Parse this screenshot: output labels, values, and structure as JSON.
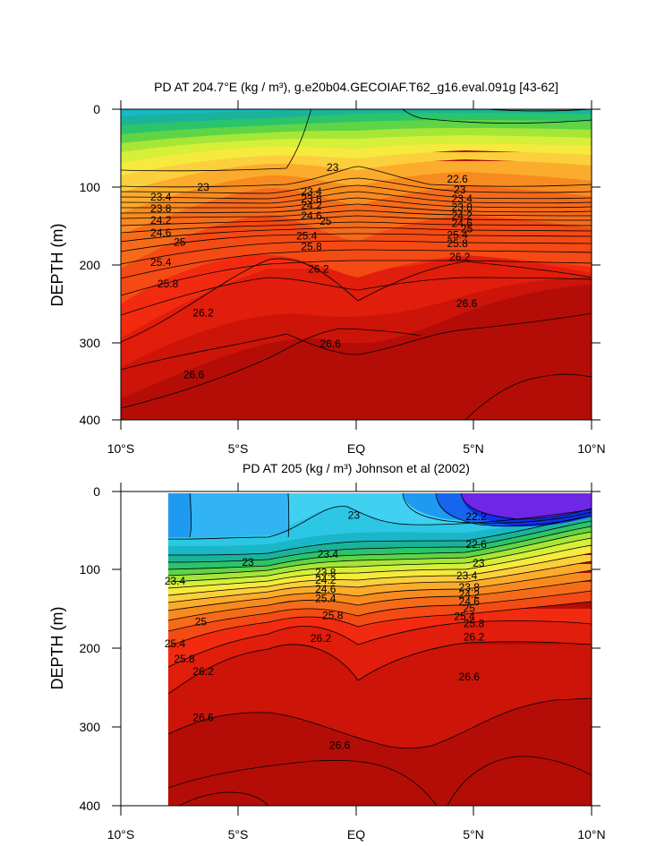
{
  "chart_data": [
    {
      "type": "contour",
      "title": "PD AT 204.7°E (kg / m³), g.e20b04.GECOIAF.T62_g16.eval.091g [43-62]",
      "ylabel": "DEPTH (m)",
      "xlabel": "",
      "x_ticks": [
        "10°S",
        "5°S",
        "EQ",
        "5°N",
        "10°N"
      ],
      "y_ticks": [
        "0",
        "100",
        "200",
        "300",
        "400"
      ],
      "xlim": [
        -10,
        10
      ],
      "ylim": [
        400,
        0
      ],
      "contour_interval": 0.2,
      "contour_labels": [
        {
          "text": "23",
          "x": -6.5,
          "y": 100
        },
        {
          "text": "23.4",
          "x": -8.3,
          "y": 113
        },
        {
          "text": "23.8",
          "x": -8.3,
          "y": 128
        },
        {
          "text": "24.2",
          "x": -8.3,
          "y": 143
        },
        {
          "text": "24.6",
          "x": -8.3,
          "y": 159
        },
        {
          "text": "25",
          "x": -7.5,
          "y": 171
        },
        {
          "text": "25.4",
          "x": -8.3,
          "y": 197
        },
        {
          "text": "25.8",
          "x": -8.0,
          "y": 225
        },
        {
          "text": "26.2",
          "x": -6.5,
          "y": 262
        },
        {
          "text": "26.6",
          "x": -6.9,
          "y": 342
        },
        {
          "text": "23",
          "x": -1.0,
          "y": 75
        },
        {
          "text": "23.4",
          "x": -1.9,
          "y": 106
        },
        {
          "text": "23.8",
          "x": -1.9,
          "y": 115
        },
        {
          "text": "24.2",
          "x": -1.9,
          "y": 124
        },
        {
          "text": "24.6",
          "x": -1.9,
          "y": 137
        },
        {
          "text": "25",
          "x": -1.3,
          "y": 144
        },
        {
          "text": "25.4",
          "x": -2.1,
          "y": 163
        },
        {
          "text": "25.8",
          "x": -1.9,
          "y": 177
        },
        {
          "text": "26.2",
          "x": -1.6,
          "y": 206
        },
        {
          "text": "26.6",
          "x": -1.1,
          "y": 302
        },
        {
          "text": "22.6",
          "x": 4.3,
          "y": 90
        },
        {
          "text": "23",
          "x": 4.4,
          "y": 104
        },
        {
          "text": "23.4",
          "x": 4.5,
          "y": 115
        },
        {
          "text": "23.8",
          "x": 4.5,
          "y": 126
        },
        {
          "text": "24.2",
          "x": 4.5,
          "y": 137
        },
        {
          "text": "24.6",
          "x": 4.5,
          "y": 147
        },
        {
          "text": "25",
          "x": 4.7,
          "y": 154
        },
        {
          "text": "25.4",
          "x": 4.3,
          "y": 162
        },
        {
          "text": "25.8",
          "x": 4.3,
          "y": 173
        },
        {
          "text": "26.2",
          "x": 4.4,
          "y": 190
        },
        {
          "text": "26.6",
          "x": 4.7,
          "y": 250
        }
      ]
    },
    {
      "type": "contour",
      "title": "PD AT 205 (kg / m³) Johnson et al (2002)",
      "ylabel": "DEPTH (m)",
      "xlabel": "",
      "x_ticks": [
        "10°S",
        "5°S",
        "EQ",
        "5°N",
        "10°N"
      ],
      "y_ticks": [
        "0",
        "100",
        "200",
        "300",
        "400"
      ],
      "xlim": [
        -10,
        10
      ],
      "ylim": [
        400,
        0
      ],
      "data_xlim": [
        -8,
        10
      ],
      "contour_interval": 0.2,
      "contour_labels": [
        {
          "text": "23",
          "x": -4.6,
          "y": 90
        },
        {
          "text": "23.4",
          "x": -7.7,
          "y": 114
        },
        {
          "text": "25",
          "x": -6.6,
          "y": 166
        },
        {
          "text": "25.4",
          "x": -7.7,
          "y": 194
        },
        {
          "text": "25.8",
          "x": -7.3,
          "y": 213
        },
        {
          "text": "26.2",
          "x": -6.5,
          "y": 229
        },
        {
          "text": "26.6",
          "x": -6.5,
          "y": 288
        },
        {
          "text": "22.2",
          "x": 5.1,
          "y": 32
        },
        {
          "text": "23",
          "x": -0.1,
          "y": 30
        },
        {
          "text": "23.4",
          "x": -1.2,
          "y": 80
        },
        {
          "text": "23.8",
          "x": -1.3,
          "y": 103
        },
        {
          "text": "24.2",
          "x": -1.3,
          "y": 113
        },
        {
          "text": "24.6",
          "x": -1.3,
          "y": 124
        },
        {
          "text": "25.4",
          "x": -1.3,
          "y": 136
        },
        {
          "text": "25.8",
          "x": -1.0,
          "y": 158
        },
        {
          "text": "26.2",
          "x": -1.5,
          "y": 187
        },
        {
          "text": "26.6",
          "x": -0.7,
          "y": 323
        },
        {
          "text": "22.6",
          "x": 5.1,
          "y": 67
        },
        {
          "text": "23",
          "x": 5.2,
          "y": 91
        },
        {
          "text": "23.4",
          "x": 4.7,
          "y": 107
        },
        {
          "text": "23.8",
          "x": 4.8,
          "y": 122
        },
        {
          "text": "24.2",
          "x": 4.8,
          "y": 131
        },
        {
          "text": "24.6",
          "x": 4.8,
          "y": 140
        },
        {
          "text": "25",
          "x": 4.8,
          "y": 149
        },
        {
          "text": "25.4",
          "x": 4.6,
          "y": 159
        },
        {
          "text": "25.8",
          "x": 5.0,
          "y": 168
        },
        {
          "text": "26.2",
          "x": 5.0,
          "y": 185
        },
        {
          "text": "26.6",
          "x": 4.8,
          "y": 236
        }
      ]
    }
  ]
}
